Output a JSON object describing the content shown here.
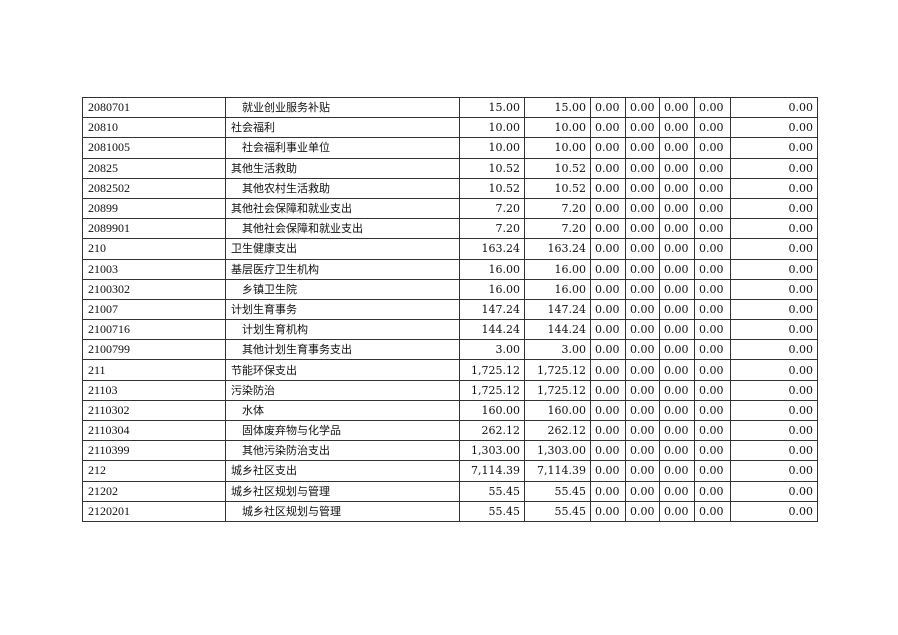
{
  "rows": [
    {
      "code": "2080701",
      "name": "就业创业服务补贴",
      "indent": true,
      "v1": "15.00",
      "v2": "15.00",
      "z": [
        "0.00",
        "0.00",
        "0.00",
        "0.00"
      ],
      "last": "0.00"
    },
    {
      "code": "20810",
      "name": "社会福利",
      "indent": false,
      "v1": "10.00",
      "v2": "10.00",
      "z": [
        "0.00",
        "0.00",
        "0.00",
        "0.00"
      ],
      "last": "0.00"
    },
    {
      "code": "2081005",
      "name": "社会福利事业单位",
      "indent": true,
      "v1": "10.00",
      "v2": "10.00",
      "z": [
        "0.00",
        "0.00",
        "0.00",
        "0.00"
      ],
      "last": "0.00"
    },
    {
      "code": "20825",
      "name": "其他生活救助",
      "indent": false,
      "v1": "10.52",
      "v2": "10.52",
      "z": [
        "0.00",
        "0.00",
        "0.00",
        "0.00"
      ],
      "last": "0.00"
    },
    {
      "code": "2082502",
      "name": "其他农村生活救助",
      "indent": true,
      "v1": "10.52",
      "v2": "10.52",
      "z": [
        "0.00",
        "0.00",
        "0.00",
        "0.00"
      ],
      "last": "0.00"
    },
    {
      "code": "20899",
      "name": "其他社会保障和就业支出",
      "indent": false,
      "v1": "7.20",
      "v2": "7.20",
      "z": [
        "0.00",
        "0.00",
        "0.00",
        "0.00"
      ],
      "last": "0.00"
    },
    {
      "code": "2089901",
      "name": "其他社会保障和就业支出",
      "indent": true,
      "v1": "7.20",
      "v2": "7.20",
      "z": [
        "0.00",
        "0.00",
        "0.00",
        "0.00"
      ],
      "last": "0.00"
    },
    {
      "code": "210",
      "name": "卫生健康支出",
      "indent": false,
      "v1": "163.24",
      "v2": "163.24",
      "z": [
        "0.00",
        "0.00",
        "0.00",
        "0.00"
      ],
      "last": "0.00"
    },
    {
      "code": "21003",
      "name": "基层医疗卫生机构",
      "indent": false,
      "v1": "16.00",
      "v2": "16.00",
      "z": [
        "0.00",
        "0.00",
        "0.00",
        "0.00"
      ],
      "last": "0.00"
    },
    {
      "code": "2100302",
      "name": "乡镇卫生院",
      "indent": true,
      "v1": "16.00",
      "v2": "16.00",
      "z": [
        "0.00",
        "0.00",
        "0.00",
        "0.00"
      ],
      "last": "0.00"
    },
    {
      "code": "21007",
      "name": "计划生育事务",
      "indent": false,
      "v1": "147.24",
      "v2": "147.24",
      "z": [
        "0.00",
        "0.00",
        "0.00",
        "0.00"
      ],
      "last": "0.00"
    },
    {
      "code": "2100716",
      "name": "计划生育机构",
      "indent": true,
      "v1": "144.24",
      "v2": "144.24",
      "z": [
        "0.00",
        "0.00",
        "0.00",
        "0.00"
      ],
      "last": "0.00"
    },
    {
      "code": "2100799",
      "name": "其他计划生育事务支出",
      "indent": true,
      "v1": "3.00",
      "v2": "3.00",
      "z": [
        "0.00",
        "0.00",
        "0.00",
        "0.00"
      ],
      "last": "0.00"
    },
    {
      "code": "211",
      "name": "节能环保支出",
      "indent": false,
      "v1": "1,725.12",
      "v2": "1,725.12",
      "z": [
        "0.00",
        "0.00",
        "0.00",
        "0.00"
      ],
      "last": "0.00"
    },
    {
      "code": "21103",
      "name": "污染防治",
      "indent": false,
      "v1": "1,725.12",
      "v2": "1,725.12",
      "z": [
        "0.00",
        "0.00",
        "0.00",
        "0.00"
      ],
      "last": "0.00"
    },
    {
      "code": "2110302",
      "name": "水体",
      "indent": true,
      "v1": "160.00",
      "v2": "160.00",
      "z": [
        "0.00",
        "0.00",
        "0.00",
        "0.00"
      ],
      "last": "0.00"
    },
    {
      "code": "2110304",
      "name": "固体废弃物与化学品",
      "indent": true,
      "v1": "262.12",
      "v2": "262.12",
      "z": [
        "0.00",
        "0.00",
        "0.00",
        "0.00"
      ],
      "last": "0.00"
    },
    {
      "code": "2110399",
      "name": "其他污染防治支出",
      "indent": true,
      "v1": "1,303.00",
      "v2": "1,303.00",
      "z": [
        "0.00",
        "0.00",
        "0.00",
        "0.00"
      ],
      "last": "0.00"
    },
    {
      "code": "212",
      "name": "城乡社区支出",
      "indent": false,
      "v1": "7,114.39",
      "v2": "7,114.39",
      "z": [
        "0.00",
        "0.00",
        "0.00",
        "0.00"
      ],
      "last": "0.00"
    },
    {
      "code": "21202",
      "name": "城乡社区规划与管理",
      "indent": false,
      "v1": "55.45",
      "v2": "55.45",
      "z": [
        "0.00",
        "0.00",
        "0.00",
        "0.00"
      ],
      "last": "0.00"
    },
    {
      "code": "2120201",
      "name": "城乡社区规划与管理",
      "indent": true,
      "v1": "55.45",
      "v2": "55.45",
      "z": [
        "0.00",
        "0.00",
        "0.00",
        "0.00"
      ],
      "last": "0.00"
    }
  ]
}
